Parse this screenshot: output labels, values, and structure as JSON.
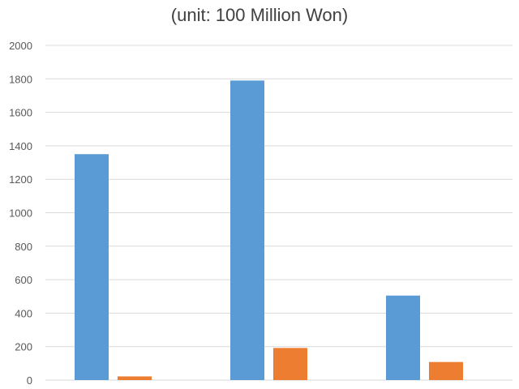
{
  "chart_data": {
    "type": "bar",
    "title": "",
    "subtitle": "(unit: 100 Million Won)",
    "xlabel": "",
    "ylabel": "",
    "categories": [
      "",
      "",
      ""
    ],
    "series": [
      {
        "values": [
          1350,
          1790,
          505
        ],
        "color": "#5b9bd5"
      },
      {
        "values": [
          22,
          192,
          108
        ],
        "color": "#ed7d31"
      }
    ],
    "ylim": [
      0,
      2000
    ],
    "yticks": [
      0,
      200,
      400,
      600,
      800,
      1000,
      1200,
      1400,
      1600,
      1800,
      2000
    ],
    "grid": true,
    "legend": "none"
  }
}
